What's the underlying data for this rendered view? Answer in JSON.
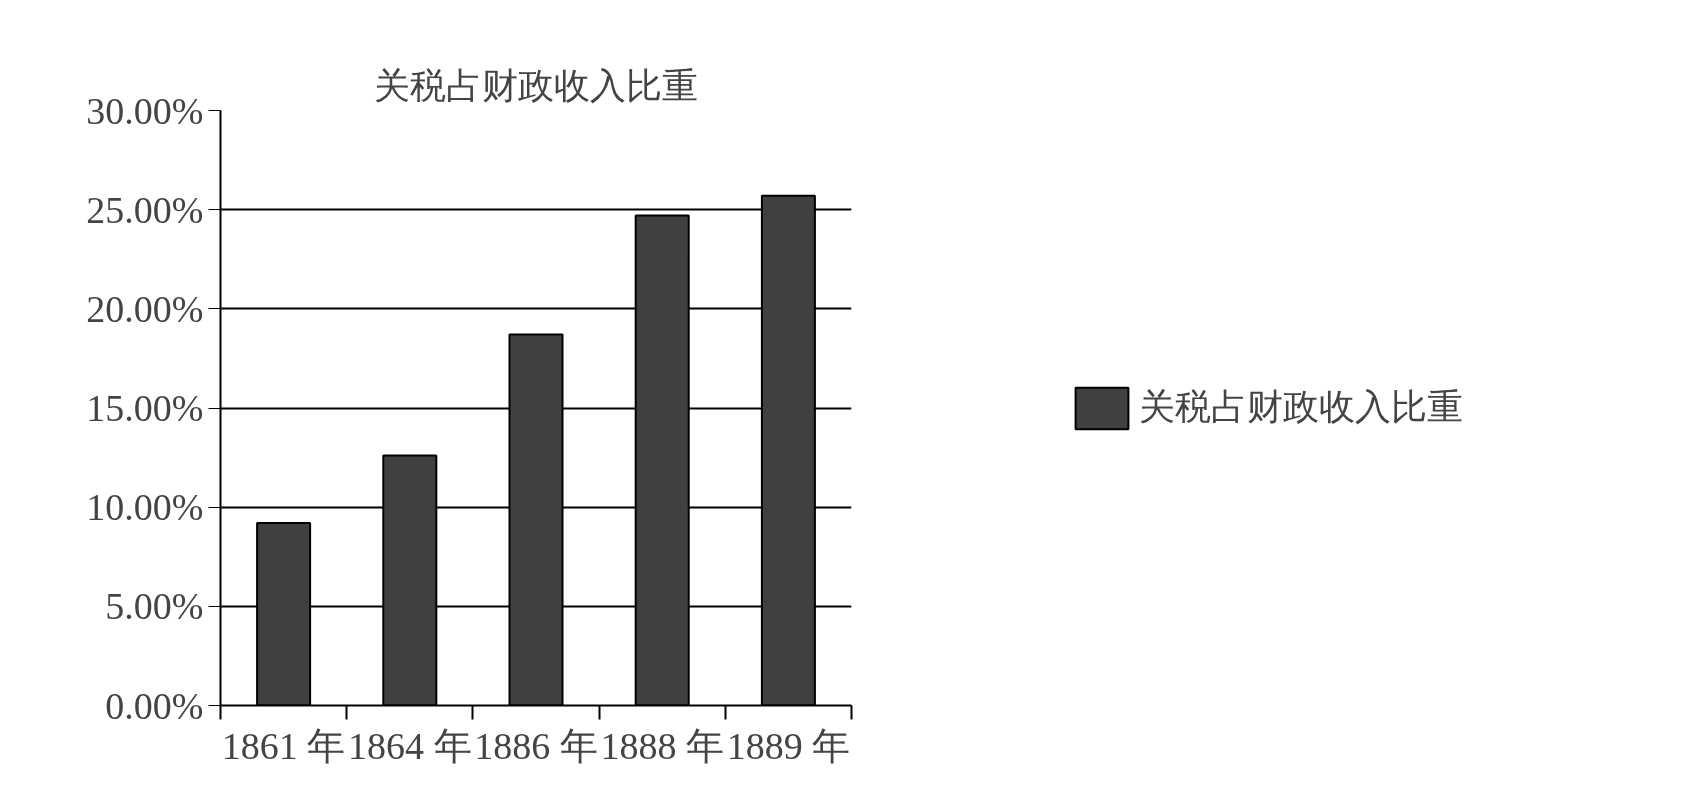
{
  "chart_data": {
    "type": "bar",
    "title": "关税占财政收入比重",
    "categories": [
      "1861 年",
      "1864 年",
      "1886 年",
      "1888 年",
      "1889 年"
    ],
    "series": [
      {
        "name": "关税占财政收入比重",
        "color": "#404040",
        "values": [
          9.2,
          12.6,
          18.7,
          24.7,
          25.7
        ]
      }
    ],
    "ylim": [
      0,
      30
    ],
    "yticks": [
      {
        "value": 0,
        "label": "0.00%"
      },
      {
        "value": 5,
        "label": "5.00%"
      },
      {
        "value": 10,
        "label": "10.00%"
      },
      {
        "value": 15,
        "label": "15.00%"
      },
      {
        "value": 20,
        "label": "20.00%"
      },
      {
        "value": 25,
        "label": "25.00%"
      },
      {
        "value": 30,
        "label": "30.00%"
      }
    ],
    "grid": "y",
    "legend": "right"
  }
}
